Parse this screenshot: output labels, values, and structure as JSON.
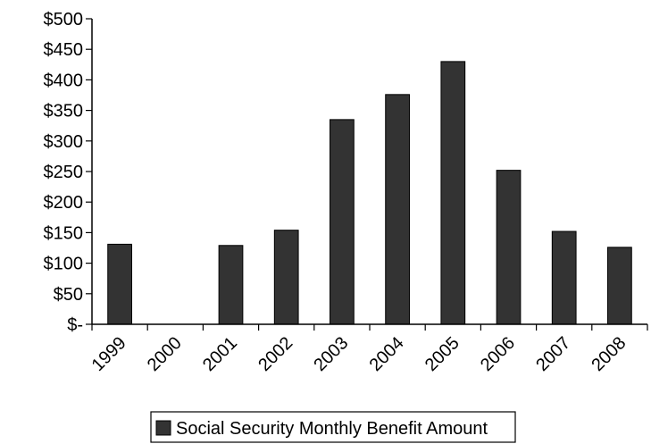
{
  "chart_data": {
    "type": "bar",
    "categories": [
      "1999",
      "2000",
      "2001",
      "2002",
      "2003",
      "2004",
      "2005",
      "2006",
      "2007",
      "2008"
    ],
    "series": [
      {
        "name": "Social Security Monthly Benefit Amount",
        "values": [
          131,
          0,
          129,
          154,
          335,
          376,
          430,
          252,
          152,
          126
        ]
      }
    ],
    "y_tick_labels": [
      "$-",
      "$50",
      "$100",
      "$150",
      "$200",
      "$250",
      "$300",
      "$350",
      "$400",
      "$450",
      "$500"
    ],
    "ylim": [
      0,
      500
    ],
    "y_step": 50,
    "grid": false,
    "legend_position": "bottom",
    "bar_color": "#333333"
  }
}
